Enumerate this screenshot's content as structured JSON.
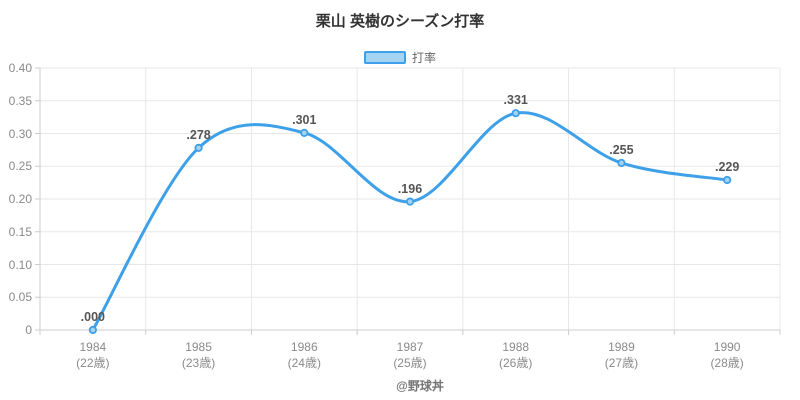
{
  "chart": {
    "title": "栗山 英樹のシーズン打率",
    "legend": {
      "label": "打率"
    },
    "caption": "@野球丼"
  },
  "chart_data": {
    "type": "line",
    "title": "栗山 英樹のシーズン打率",
    "categories": [
      "1984",
      "1985",
      "1986",
      "1987",
      "1988",
      "1989",
      "1990"
    ],
    "category_sublabels": [
      "(22歳)",
      "(23歳)",
      "(24歳)",
      "(25歳)",
      "(26歳)",
      "(27歳)",
      "(28歳)"
    ],
    "series": [
      {
        "name": "打率",
        "values": [
          0.0,
          0.278,
          0.301,
          0.196,
          0.331,
          0.255,
          0.229
        ]
      }
    ],
    "point_labels": [
      ".000",
      ".278",
      ".301",
      ".196",
      ".331",
      ".255",
      ".229"
    ],
    "y_ticks": [
      "0.40",
      "0.35",
      "0.30",
      "0.25",
      "0.20",
      "0.15",
      "0.10",
      "0.05",
      "0"
    ],
    "ylim": [
      0,
      0.4
    ],
    "grid": true,
    "smooth": true,
    "legend_position": "top",
    "colors": {
      "line": "#3da0e8",
      "point_fill": "#a5d4f2",
      "grid": "#e7e7e7",
      "axis": "#cccccc",
      "tick_text": "#8a8a8a",
      "data_label": "#555555",
      "title_text": "#333333"
    }
  }
}
